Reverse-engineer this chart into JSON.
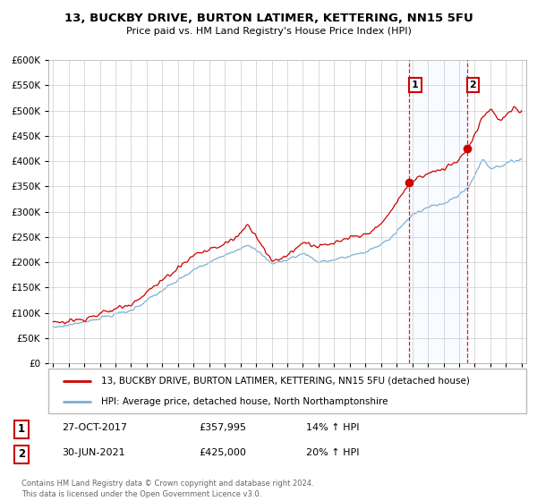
{
  "title": "13, BUCKBY DRIVE, BURTON LATIMER, KETTERING, NN15 5FU",
  "subtitle": "Price paid vs. HM Land Registry's House Price Index (HPI)",
  "red_label": "13, BUCKBY DRIVE, BURTON LATIMER, KETTERING, NN15 5FU (detached house)",
  "blue_label": "HPI: Average price, detached house, North Northamptonshire",
  "annotation1": {
    "num": "1",
    "date": "27-OCT-2017",
    "price": "£357,995",
    "pct": "14% ↑ HPI",
    "x": 2017.82
  },
  "annotation2": {
    "num": "2",
    "date": "30-JUN-2021",
    "price": "£425,000",
    "pct": "20% ↑ HPI",
    "x": 2021.5
  },
  "red_dot1_x": 2017.82,
  "red_dot1_y": 357995,
  "red_dot2_x": 2021.5,
  "red_dot2_y": 425000,
  "ylim": [
    0,
    600000
  ],
  "xlim_start": 1994.7,
  "xlim_end": 2025.3,
  "footer": "Contains HM Land Registry data © Crown copyright and database right 2024.\nThis data is licensed under the Open Government Licence v3.0.",
  "red_color": "#cc0000",
  "blue_color": "#7bafd4",
  "vline_color": "#cc0000",
  "span_color": "#ddeeff",
  "grid_color": "#cccccc",
  "bg_color": "#ffffff"
}
